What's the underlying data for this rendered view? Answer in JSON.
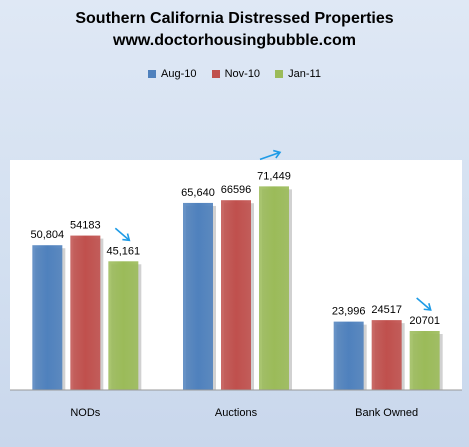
{
  "chart_data": {
    "type": "bar",
    "title": "Southern California Distressed Properties",
    "subtitle": "www.doctorhousingbubble.com",
    "categories": [
      "NODs",
      "Auctions",
      "Bank Owned"
    ],
    "series": [
      {
        "name": "Aug-10",
        "color": "#4f81bd",
        "values": [
          50804,
          65640,
          23996
        ],
        "labels": [
          "50,804",
          "65,640",
          "23,996"
        ]
      },
      {
        "name": "Nov-10",
        "color": "#c0504d",
        "values": [
          54183,
          66596,
          24517
        ],
        "labels": [
          "54183",
          "66596",
          "24517"
        ]
      },
      {
        "name": "Jan-11",
        "color": "#9bbb59",
        "values": [
          45161,
          71449,
          20701
        ],
        "labels": [
          "45,161",
          "71,449",
          "20701"
        ]
      }
    ],
    "ylim": [
      0,
      80000
    ],
    "grid": false,
    "legend_position": "top-center",
    "annotations": [
      {
        "type": "arrow",
        "direction": "down",
        "near": "NODs Jan-11"
      },
      {
        "type": "arrow",
        "direction": "up",
        "near": "Auctions Jan-11"
      },
      {
        "type": "arrow",
        "direction": "down",
        "near": "Bank Owned Jan-11"
      }
    ],
    "arrow_color": "#1e9be6"
  }
}
